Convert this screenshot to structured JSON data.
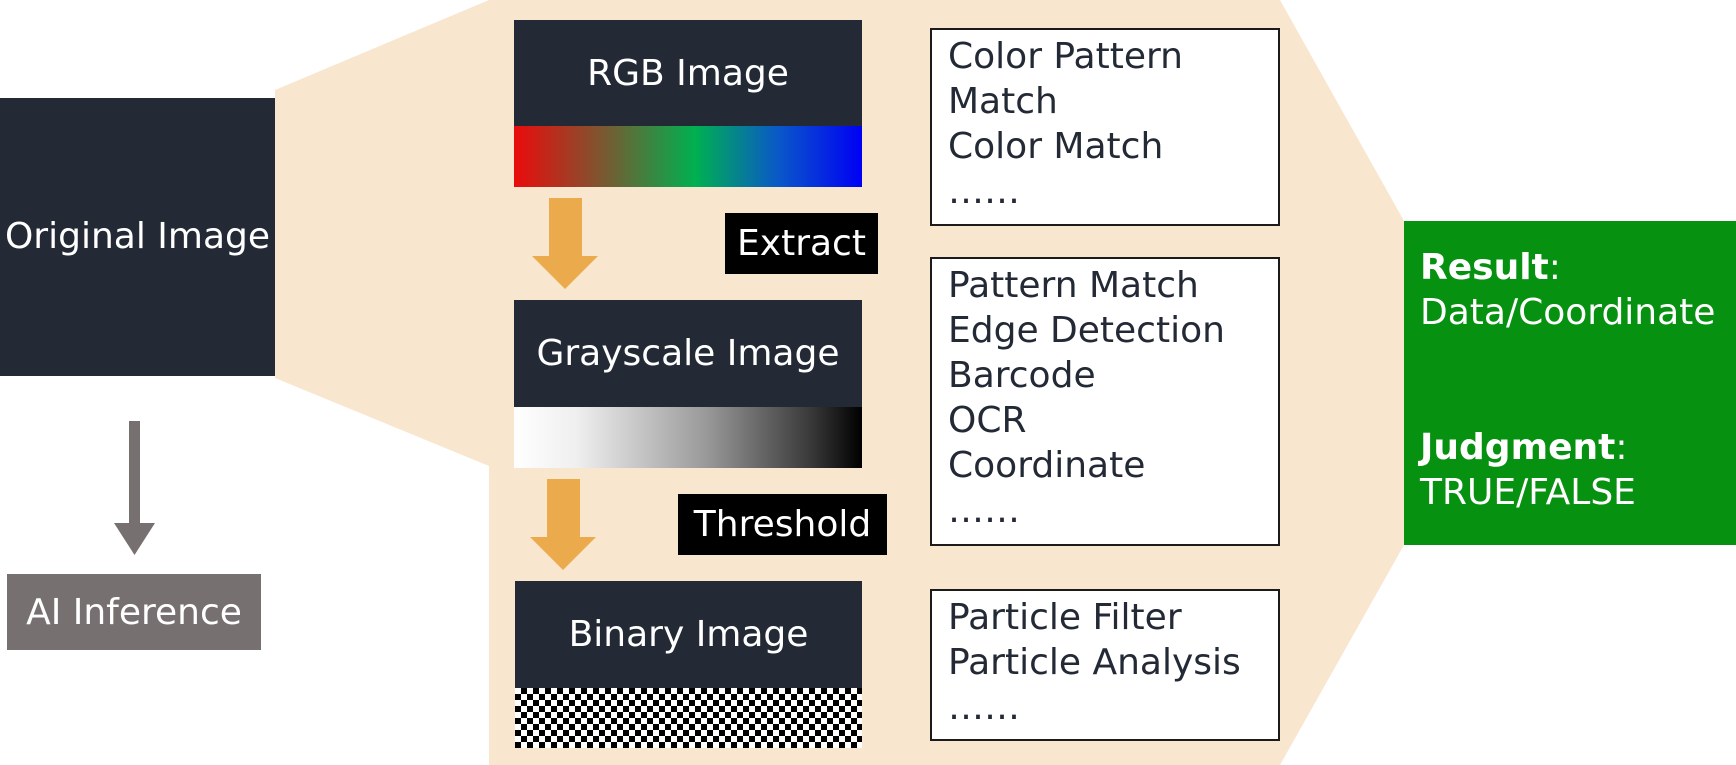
{
  "colors": {
    "dark_box": "#232a36",
    "zoom_region": "#f9e6cf",
    "flow_arrow": "#ebaa4c",
    "ai_box": "#767170",
    "result_box": "#079111",
    "down_arrow": "#767170"
  },
  "original": {
    "label": "Original Image"
  },
  "ai": {
    "label": "AI Inference"
  },
  "images": {
    "rgb": "RGB Image",
    "grayscale": "Grayscale Image",
    "binary": "Binary Image"
  },
  "steps": {
    "extract": "Extract",
    "threshold": "Threshold"
  },
  "panels": {
    "color": {
      "items": [
        "Color Pattern",
        "Match",
        "Color Match",
        "……"
      ]
    },
    "gray": {
      "items": [
        "Pattern Match",
        "Edge Detection",
        "Barcode",
        "OCR",
        "Coordinate",
        "……"
      ]
    },
    "binary": {
      "items": [
        "Particle Filter",
        "Particle Analysis",
        "……"
      ]
    }
  },
  "result": {
    "result_key": "Result",
    "result_value": "Data/Coordinate",
    "judgment_key": "Judgment",
    "judgment_value": "TRUE/FALSE",
    "separator": ":"
  }
}
